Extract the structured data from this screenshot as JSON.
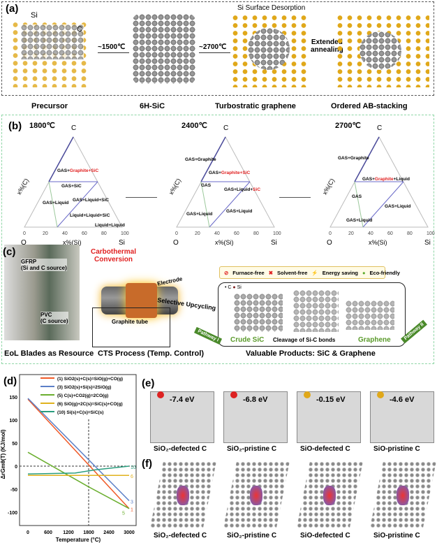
{
  "panel_a": {
    "label": "(a)",
    "si": "Si",
    "c": "C",
    "t1": "~1500℃",
    "t2": "~2700℃",
    "desorption": "Si Surface Desorption",
    "extended": "Extended\nannealing",
    "stages": [
      "Precursor",
      "6H-SiC",
      "Turbostratic graphene",
      "Ordered AB-stacking"
    ]
  },
  "panel_b": {
    "label": "(b)",
    "diagrams": [
      {
        "temp": "1800℃",
        "regions": [
          [
            "GAS+",
            "Graphite+SiC"
          ],
          [
            "GAS+SiC",
            ""
          ],
          [
            "GAS+Liquid",
            ""
          ],
          [
            "GAS+Liquid+SiC",
            ""
          ],
          [
            "Liquid+Liquid+SiC",
            ""
          ],
          [
            "Liquid+Liquid",
            ""
          ]
        ]
      },
      {
        "temp": "2400℃",
        "regions": [
          [
            "GAS+Graphite",
            ""
          ],
          [
            "GAS+",
            "Graphite+SiC"
          ],
          [
            "GAS",
            ""
          ],
          [
            "GAS+Liquid+",
            "SiC"
          ],
          [
            "GAS+Liquid",
            ""
          ],
          [
            "GAS+Liquid",
            ""
          ]
        ]
      },
      {
        "temp": "2700℃",
        "regions": [
          [
            "GAS+Graphite",
            ""
          ],
          [
            "GAS+",
            "Graphite",
            "+Liquid"
          ],
          [
            "GAS",
            ""
          ],
          [
            "GAS+Liquid",
            ""
          ],
          [
            "GAS+Liquid",
            ""
          ]
        ]
      }
    ],
    "apex": "C",
    "left_corner": "O",
    "right_corner": "Si",
    "xaxis": "x%(Si)",
    "yaxis": "x%(C)",
    "ticks": [
      "0",
      "20",
      "40",
      "60",
      "80",
      "100"
    ]
  },
  "panel_c": {
    "label": "(c)",
    "gfrp": "GFRP\n(Si and C source)",
    "pvc": "PVC\n(C source)",
    "carbothermal": "Carbothermal\nConversion",
    "electrode": "Electrode",
    "tube": "Graphite tube",
    "selective": "Selective Upcycling",
    "features": [
      "Furnace-free",
      "Solvent-free",
      "Energy saving",
      "Eco-friendly"
    ],
    "legend_c": "C",
    "legend_si": "Si",
    "crude": "Crude SiC",
    "cleavage": "Cleavage of Si-C bonds",
    "graphene": "Graphene",
    "pathway1": "Pathway I",
    "pathway2": "Pathway II",
    "captions": [
      "EoL Blades as Resource",
      "CTS Process (Temp. Control)",
      "Valuable Products: SiC & Graphene"
    ]
  },
  "chart_data": {
    "type": "line",
    "panel_label": "(d)",
    "xlabel": "Temperature (°C)",
    "ylabel": "ΔrGmθ(T) (KJ/mol)",
    "xlim": [
      -200,
      3200
    ],
    "ylim": [
      -130,
      195
    ],
    "xticks": [
      0,
      600,
      1200,
      1800,
      2400,
      3000
    ],
    "yticks": [
      -100,
      -50,
      0,
      50,
      100,
      150
    ],
    "legend": "top-right",
    "reference_lines": {
      "x": 1800,
      "y": 0
    },
    "series": [
      {
        "name": "(1) SiO2(s)+C(s)=SiO(g)+CO(g)",
        "end_label": "1",
        "color": "#f05a28",
        "x": [
          0,
          3000
        ],
        "y": [
          145,
          -92
        ]
      },
      {
        "name": "(3) SiO2(s)+Si(s)=2SiO(g)",
        "end_label": "3",
        "color": "#5b7fc7",
        "x": [
          0,
          3000
        ],
        "y": [
          147,
          -75
        ]
      },
      {
        "name": "(5) C(s)+CO2(g)=2CO(g)",
        "end_label": "5",
        "color": "#6aae2e",
        "x": [
          0,
          1800,
          3000
        ],
        "y": [
          30,
          -45,
          -92
        ]
      },
      {
        "name": "(6) SiO(g)+2C(s)=SiC(s)+CO(g)",
        "end_label": "6",
        "color": "#e0b21e",
        "x": [
          0,
          3000
        ],
        "y": [
          -20,
          -20
        ]
      },
      {
        "name": "(10) Si(s)+C(s)=SiC(s)",
        "end_label": "10",
        "color": "#2a9d7e",
        "x": [
          0,
          1400,
          2000,
          3000
        ],
        "y": [
          -17,
          -15,
          -8,
          0
        ]
      }
    ]
  },
  "panel_e": {
    "label": "(e)",
    "items": [
      {
        "energy": "-7.4 eV",
        "caption": "SiO₂-defected C"
      },
      {
        "energy": "-6.8 eV",
        "caption": "SiO₂-pristine C"
      },
      {
        "energy": "-0.15 eV",
        "caption": "SiO-defected C"
      },
      {
        "energy": "-4.6 eV",
        "caption": "SiO-pristine C"
      }
    ]
  },
  "panel_f": {
    "label": "(f)",
    "captions": [
      "SiO₂-defected C",
      "SiO₂-pristine C",
      "SiO-defected C",
      "SiO-pristine C"
    ]
  }
}
